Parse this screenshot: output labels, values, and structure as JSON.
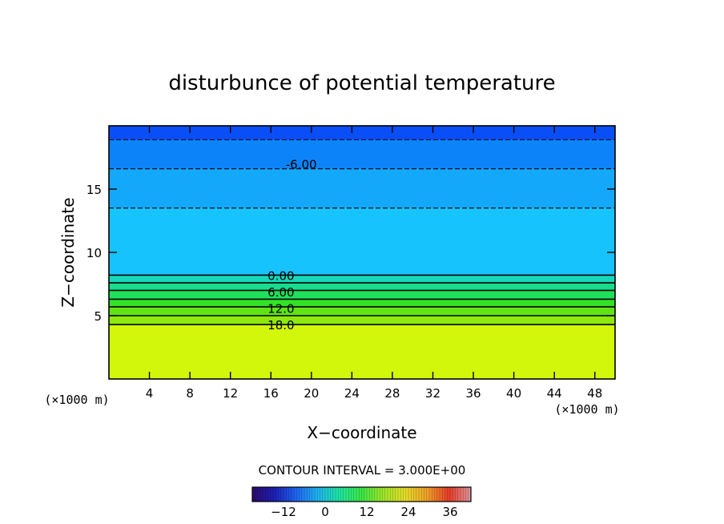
{
  "chart_data": {
    "type": "heatmap",
    "title": "disturbunce of potential temperature",
    "xlabel": "X−coordinate",
    "ylabel": "Z−coordinate",
    "x_unit_label_left": "(×1000 m)",
    "x_unit_label_right": "(×1000 m)",
    "xlim": [
      0,
      50
    ],
    "ylim": [
      0,
      20
    ],
    "x_ticks": [
      "4",
      "8",
      "12",
      "16",
      "20",
      "24",
      "28",
      "32",
      "36",
      "40",
      "44",
      "48"
    ],
    "y_ticks": [
      "5",
      "10",
      "15"
    ],
    "contour_interval_text": "CONTOUR INTERVAL = 3.000E+00",
    "contour_labels": [
      {
        "text": "-6.00",
        "x": 19,
        "z": 17.0
      },
      {
        "text": "0.00",
        "x": 17,
        "z": 8.2
      },
      {
        "text": "6.00",
        "x": 17,
        "z": 6.9
      },
      {
        "text": "12.0",
        "x": 17,
        "z": 5.6
      },
      {
        "text": "18.0",
        "x": 17,
        "z": 4.3
      }
    ],
    "bands": [
      {
        "z_top": 20.0,
        "z_bottom": 18.9,
        "color": "#0a4ef7"
      },
      {
        "z_top": 18.9,
        "z_bottom": 16.6,
        "color": "#0d83f9"
      },
      {
        "z_top": 16.6,
        "z_bottom": 13.5,
        "color": "#14a8fb"
      },
      {
        "z_top": 13.5,
        "z_bottom": 8.2,
        "color": "#17c3fd"
      },
      {
        "z_top": 8.2,
        "z_bottom": 7.6,
        "color": "#15d8ba"
      },
      {
        "z_top": 7.6,
        "z_bottom": 7.0,
        "color": "#18dd8e"
      },
      {
        "z_top": 7.0,
        "z_bottom": 6.3,
        "color": "#1ee05a"
      },
      {
        "z_top": 6.3,
        "z_bottom": 5.7,
        "color": "#31e226"
      },
      {
        "z_top": 5.7,
        "z_bottom": 5.0,
        "color": "#5fe315"
      },
      {
        "z_top": 5.0,
        "z_bottom": 4.3,
        "color": "#8de80d"
      },
      {
        "z_top": 4.3,
        "z_bottom": 0.0,
        "color": "#d2f70a"
      }
    ],
    "colorbar": {
      "range": [
        -21,
        42
      ],
      "ticks": [
        "−12",
        "0",
        "12",
        "24",
        "36"
      ],
      "tick_values": [
        -12,
        0,
        12,
        24,
        36
      ],
      "stops": [
        "#2a0a6b",
        "#1e1eb4",
        "#1e64f0",
        "#1eb4f0",
        "#1ee6a0",
        "#3ce646",
        "#a0e628",
        "#e6dc28",
        "#f0a028",
        "#e63c28",
        "#dc96a0"
      ]
    }
  }
}
